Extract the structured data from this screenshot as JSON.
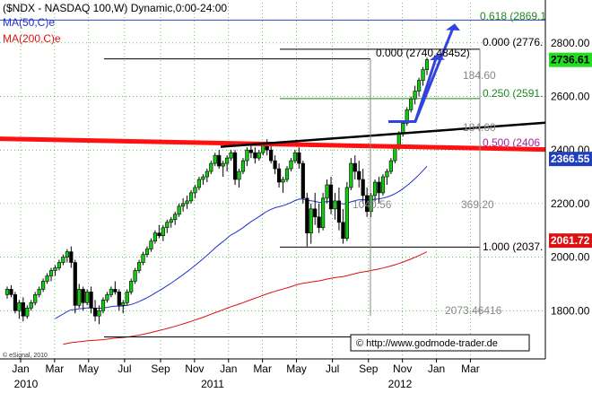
{
  "chart_data": {
    "type": "candlestick",
    "title": "($NDX - NASDAQ 100,W) Dynamic,0:00-24:00",
    "legend": [
      {
        "text": "MA(50,C)e",
        "color": "#2233cc"
      },
      {
        "text": "MA(200,C)e",
        "color": "#dd1111"
      }
    ],
    "ylim": [
      1620,
      2950
    ],
    "y_ticks": [
      "2800.00",
      "2600.00",
      "2400.00",
      "2200.00",
      "2000.00",
      "1800.00"
    ],
    "y_tick_values": [
      2800,
      2600,
      2400,
      2200,
      2000,
      1800
    ],
    "x_month_labels": [
      "Jan",
      "Mar",
      "May",
      "Jul",
      "Sep",
      "Nov",
      "Jan",
      "Mar",
      "May",
      "Jul",
      "Sep",
      "Nov",
      "Jan",
      "Mar"
    ],
    "x_year_labels": [
      "2010",
      "2011",
      "2012"
    ],
    "price_tags": [
      {
        "text": "2736.61",
        "value": 2736.61,
        "bg": "#22dd22",
        "fg": "#000000"
      },
      {
        "text": "2366.55",
        "value": 2366.55,
        "bg": "#1f3fbf",
        "fg": "#ffffff"
      },
      {
        "text": "2061.72",
        "value": 2061.72,
        "bg": "#dd1111",
        "fg": "#ffffff"
      }
    ],
    "fib_labels": [
      {
        "text": "0.618 (2869.1",
        "value": 2869.1,
        "color": "#228822"
      },
      {
        "text": "0.000 (2776.",
        "value": 2776.3,
        "color": "#000000"
      },
      {
        "text": "0.250 (2591.",
        "value": 2591.8,
        "color": "#228822"
      },
      {
        "text": "0.500 (2406",
        "value": 2406.4,
        "color": "#aa2299"
      },
      {
        "text": "1.000 (2037.",
        "value": 2037.5,
        "color": "#000000"
      }
    ],
    "annotations": [
      {
        "text": "0.000 (2740.48452)",
        "color": "#000000"
      },
      {
        "text": "184.60",
        "color": "#888888"
      },
      {
        "text": "184.60",
        "color": "#888888"
      },
      {
        "text": "1040.56",
        "color": "#888888"
      },
      {
        "text": "369.20",
        "color": "#888888"
      },
      {
        "text": "2073.46416",
        "color": "#888888"
      }
    ],
    "copyright": "© eSignal, 2010",
    "watermark": "© http://www.godmode-trader.de",
    "ohlc_weekly_start": "2010-01-04",
    "ohlc": [
      [
        1860,
        1890,
        1845,
        1880
      ],
      [
        1880,
        1895,
        1850,
        1860
      ],
      [
        1860,
        1870,
        1790,
        1800
      ],
      [
        1800,
        1840,
        1770,
        1830
      ],
      [
        1830,
        1850,
        1760,
        1780
      ],
      [
        1780,
        1820,
        1770,
        1810
      ],
      [
        1810,
        1840,
        1800,
        1830
      ],
      [
        1830,
        1870,
        1820,
        1860
      ],
      [
        1860,
        1890,
        1850,
        1880
      ],
      [
        1880,
        1920,
        1870,
        1910
      ],
      [
        1910,
        1940,
        1900,
        1930
      ],
      [
        1930,
        1960,
        1910,
        1950
      ],
      [
        1950,
        1970,
        1930,
        1960
      ],
      [
        1960,
        1990,
        1950,
        1980
      ],
      [
        1980,
        2010,
        1970,
        2000
      ],
      [
        2000,
        2030,
        1980,
        2020
      ],
      [
        2020,
        2040,
        1960,
        1980
      ],
      [
        1980,
        1990,
        1790,
        1820
      ],
      [
        1820,
        1900,
        1810,
        1880
      ],
      [
        1880,
        1890,
        1800,
        1830
      ],
      [
        1830,
        1880,
        1820,
        1870
      ],
      [
        1870,
        1890,
        1790,
        1810
      ],
      [
        1810,
        1840,
        1760,
        1780
      ],
      [
        1780,
        1820,
        1750,
        1800
      ],
      [
        1800,
        1850,
        1790,
        1840
      ],
      [
        1840,
        1870,
        1830,
        1860
      ],
      [
        1860,
        1890,
        1850,
        1880
      ],
      [
        1880,
        1910,
        1860,
        1870
      ],
      [
        1870,
        1880,
        1800,
        1820
      ],
      [
        1820,
        1840,
        1790,
        1830
      ],
      [
        1830,
        1880,
        1820,
        1870
      ],
      [
        1870,
        1920,
        1860,
        1910
      ],
      [
        1910,
        1960,
        1900,
        1950
      ],
      [
        1950,
        1990,
        1940,
        1980
      ],
      [
        1980,
        2020,
        1970,
        2010
      ],
      [
        2010,
        2040,
        2000,
        2030
      ],
      [
        2030,
        2070,
        2020,
        2060
      ],
      [
        2060,
        2100,
        2050,
        2090
      ],
      [
        2090,
        2120,
        2070,
        2080
      ],
      [
        2080,
        2120,
        2060,
        2110
      ],
      [
        2110,
        2140,
        2090,
        2130
      ],
      [
        2130,
        2150,
        2110,
        2140
      ],
      [
        2140,
        2170,
        2120,
        2160
      ],
      [
        2160,
        2200,
        2150,
        2190
      ],
      [
        2190,
        2220,
        2170,
        2200
      ],
      [
        2200,
        2230,
        2180,
        2210
      ],
      [
        2210,
        2250,
        2200,
        2240
      ],
      [
        2240,
        2270,
        2220,
        2260
      ],
      [
        2260,
        2300,
        2250,
        2290
      ],
      [
        2290,
        2310,
        2270,
        2300
      ],
      [
        2300,
        2330,
        2280,
        2320
      ],
      [
        2320,
        2360,
        2310,
        2350
      ],
      [
        2350,
        2390,
        2340,
        2380
      ],
      [
        2380,
        2400,
        2330,
        2340
      ],
      [
        2340,
        2360,
        2300,
        2350
      ],
      [
        2350,
        2380,
        2320,
        2370
      ],
      [
        2370,
        2400,
        2360,
        2390
      ],
      [
        2390,
        2400,
        2270,
        2290
      ],
      [
        2290,
        2330,
        2260,
        2320
      ],
      [
        2320,
        2370,
        2310,
        2360
      ],
      [
        2360,
        2410,
        2340,
        2400
      ],
      [
        2400,
        2420,
        2370,
        2390
      ],
      [
        2390,
        2410,
        2350,
        2370
      ],
      [
        2370,
        2400,
        2360,
        2390
      ],
      [
        2390,
        2430,
        2380,
        2420
      ],
      [
        2420,
        2440,
        2380,
        2400
      ],
      [
        2400,
        2420,
        2350,
        2360
      ],
      [
        2360,
        2380,
        2310,
        2330
      ],
      [
        2330,
        2350,
        2260,
        2280
      ],
      [
        2280,
        2300,
        2240,
        2290
      ],
      [
        2290,
        2340,
        2280,
        2330
      ],
      [
        2330,
        2370,
        2320,
        2360
      ],
      [
        2360,
        2400,
        2350,
        2390
      ],
      [
        2390,
        2410,
        2330,
        2350
      ],
      [
        2350,
        2360,
        2200,
        2220
      ],
      [
        2220,
        2240,
        2040,
        2090
      ],
      [
        2090,
        2200,
        2050,
        2180
      ],
      [
        2180,
        2240,
        2120,
        2150
      ],
      [
        2150,
        2200,
        2090,
        2110
      ],
      [
        2110,
        2240,
        2100,
        2220
      ],
      [
        2220,
        2290,
        2200,
        2270
      ],
      [
        2270,
        2300,
        2160,
        2180
      ],
      [
        2180,
        2240,
        2140,
        2210
      ],
      [
        2210,
        2260,
        2100,
        2130
      ],
      [
        2130,
        2180,
        2050,
        2070
      ],
      [
        2070,
        2280,
        2060,
        2260
      ],
      [
        2260,
        2370,
        2250,
        2350
      ],
      [
        2350,
        2380,
        2290,
        2320
      ],
      [
        2320,
        2360,
        2260,
        2290
      ],
      [
        2290,
        2330,
        2200,
        2230
      ],
      [
        2230,
        2260,
        2150,
        2170
      ],
      [
        2170,
        2240,
        2150,
        2230
      ],
      [
        2230,
        2290,
        2210,
        2280
      ],
      [
        2280,
        2300,
        2200,
        2240
      ],
      [
        2240,
        2310,
        2230,
        2300
      ],
      [
        2300,
        2330,
        2270,
        2320
      ],
      [
        2320,
        2370,
        2310,
        2360
      ],
      [
        2360,
        2420,
        2350,
        2410
      ],
      [
        2410,
        2470,
        2400,
        2460
      ],
      [
        2460,
        2510,
        2450,
        2500
      ],
      [
        2500,
        2560,
        2490,
        2550
      ],
      [
        2550,
        2600,
        2540,
        2590
      ],
      [
        2590,
        2640,
        2570,
        2620
      ],
      [
        2620,
        2670,
        2600,
        2660
      ],
      [
        2660,
        2710,
        2640,
        2700
      ],
      [
        2700,
        2745,
        2680,
        2737
      ]
    ]
  }
}
